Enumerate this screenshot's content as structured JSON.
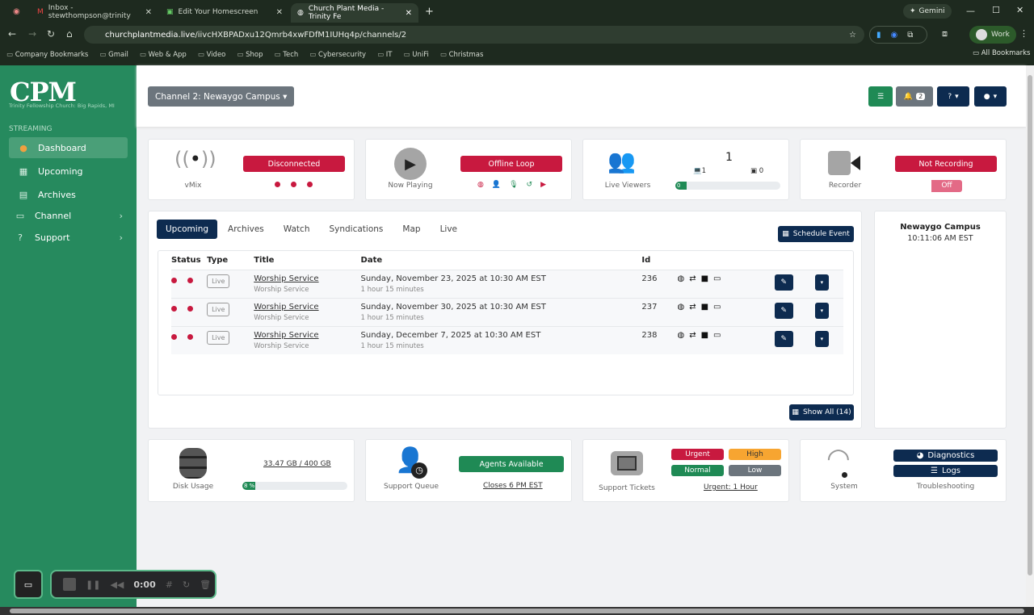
{
  "browser": {
    "tabs": [
      {
        "label": "Inbox - stewthompson@trinity"
      },
      {
        "label": "Edit Your Homescreen"
      },
      {
        "label": "Church Plant Media - Trinity Fe"
      }
    ],
    "url_domain": "churchplantmedia.live",
    "url_path": "/iivcHXBPADxu12Qmrb4xwFDfM1IUHq4p/channels/2",
    "gemini": "Gemini",
    "profile": "Work",
    "bookmarks": [
      "Company Bookmarks",
      "Gmail",
      "Web & App",
      "Video",
      "Shop",
      "Tech",
      "Cybersecurity",
      "IT",
      "UniFi",
      "Christmas"
    ],
    "all_bookmarks": "All Bookmarks"
  },
  "sidebar": {
    "logo": "CPM",
    "org": "Trinity Fellowship Church: Big Rapids, MI",
    "section": "STREAMING",
    "items": [
      {
        "label": "Dashboard"
      },
      {
        "label": "Upcoming"
      },
      {
        "label": "Archives"
      },
      {
        "label": "Channel"
      },
      {
        "label": "Support"
      }
    ]
  },
  "header": {
    "channel": "Channel 2: Newaygo Campus",
    "notifications": "2"
  },
  "status": {
    "vmix": {
      "label": "vMix",
      "state": "Disconnected"
    },
    "now_playing": {
      "label": "Now Playing",
      "state": "Offline Loop"
    },
    "viewers": {
      "label": "Live Viewers",
      "total": "1",
      "web": "1",
      "youtube": "0",
      "progress": "0 %",
      "progress_pct": 0
    },
    "recorder": {
      "label": "Recorder",
      "state": "Not Recording",
      "toggle": "Off"
    }
  },
  "events": {
    "tabs": [
      "Upcoming",
      "Archives",
      "Watch",
      "Syndications",
      "Map",
      "Live"
    ],
    "schedule": "Schedule Event",
    "columns": [
      "Status",
      "Type",
      "Title",
      "Date",
      "Id"
    ],
    "rows": [
      {
        "type": "Live",
        "title": "Worship Service",
        "subtitle": "Worship Service",
        "date": "Sunday, November 23, 2025 at 10:30 AM EST",
        "duration": "1 hour 15 minutes",
        "id": "236"
      },
      {
        "type": "Live",
        "title": "Worship Service",
        "subtitle": "Worship Service",
        "date": "Sunday, November 30, 2025 at 10:30 AM EST",
        "duration": "1 hour 15 minutes",
        "id": "237"
      },
      {
        "type": "Live",
        "title": "Worship Service",
        "subtitle": "Worship Service",
        "date": "Sunday, December 7, 2025 at 10:30 AM EST",
        "duration": "1 hour 15 minutes",
        "id": "238"
      }
    ],
    "show_all": "Show All (14)"
  },
  "campus": {
    "name": "Newaygo Campus",
    "time": "10:11:06 AM EST"
  },
  "bottom": {
    "disk": {
      "label": "Disk Usage",
      "usage": "33.47 GB / 400 GB",
      "progress": "8 %",
      "progress_pct": 8
    },
    "queue": {
      "label": "Support Queue",
      "status": "Agents Available",
      "closes": "Closes 6 PM EST"
    },
    "tickets": {
      "label": "Support Tickets",
      "levels": [
        "Urgent",
        "High",
        "Normal",
        "Low"
      ],
      "urgent": "Urgent: 1 Hour"
    },
    "system": {
      "label": "System",
      "diagnostics": "Diagnostics",
      "logs": "Logs",
      "troubleshooting": "Troubleshooting"
    }
  },
  "recorder_bar": {
    "time": "0:00"
  },
  "colors": {
    "sidebar": "#268a5e",
    "navy": "#0d2b50",
    "red": "#c8193f",
    "green": "#1f8a55",
    "orange": "#f7a531",
    "gray": "#6c757d"
  }
}
